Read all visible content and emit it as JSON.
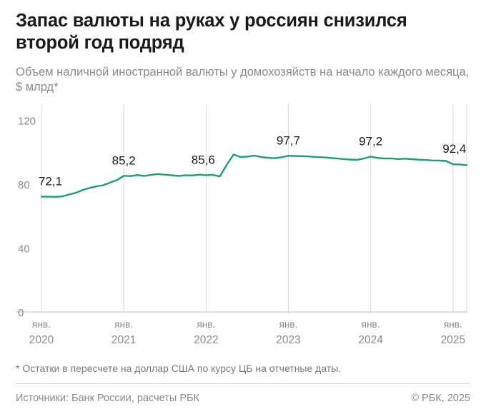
{
  "header": {
    "title": "Запас валюты на руках у россиян снизился второй год подряд",
    "subtitle": "Объем наличной иностранной валюты у домохозяйств на начало каждого месяца, $ млрд*"
  },
  "chart_data": {
    "type": "line",
    "title": "Запас валюты на руках у россиян снизился второй год подряд",
    "subtitle": "Объем наличной иностранной валюты у домохозяйств на начало каждого месяца, $ млрд*",
    "xlabel": "",
    "ylabel": "",
    "ylim": [
      0,
      130
    ],
    "y_ticks": [
      0,
      40,
      80,
      120
    ],
    "x_ticks": [
      {
        "label": [
          "янв.",
          "2020"
        ],
        "month_index": 0
      },
      {
        "label": [
          "янв.",
          "2021"
        ],
        "month_index": 12
      },
      {
        "label": [
          "янв.",
          "2022"
        ],
        "month_index": 24
      },
      {
        "label": [
          "янв.",
          "2023"
        ],
        "month_index": 36
      },
      {
        "label": [
          "янв.",
          "2024"
        ],
        "month_index": 48
      },
      {
        "label": [
          "янв.",
          "2025"
        ],
        "month_index": 60
      }
    ],
    "grid": "vertical lines at January of each year",
    "line_color": "#1f9e6e",
    "series": [
      {
        "values": [
          72.1,
          72.2,
          72.0,
          72.3,
          73.5,
          74.5,
          76.3,
          77.6,
          78.6,
          79.3,
          81.0,
          82.5,
          85.2,
          85.0,
          85.7,
          85.1,
          85.8,
          86.3,
          85.9,
          85.5,
          85.1,
          85.5,
          85.4,
          85.9,
          85.6,
          85.8,
          84.8,
          92.0,
          98.5,
          97.0,
          97.2,
          97.9,
          97.0,
          96.5,
          96.2,
          96.8,
          97.7,
          97.6,
          97.5,
          97.3,
          97.0,
          96.8,
          96.4,
          96.1,
          95.7,
          95.4,
          95.2,
          96.0,
          97.2,
          96.4,
          96.0,
          96.1,
          95.7,
          95.9,
          95.6,
          95.3,
          95.1,
          94.8,
          94.7,
          94.5,
          92.4,
          92.3,
          91.9
        ]
      }
    ],
    "annotations": [
      {
        "month_index": 0,
        "label": "72,1"
      },
      {
        "month_index": 12,
        "label": "85,2"
      },
      {
        "month_index": 24,
        "label": "85,6"
      },
      {
        "month_index": 36,
        "label": "97,7"
      },
      {
        "month_index": 48,
        "label": "97,2"
      },
      {
        "month_index": 60,
        "label": "92,4"
      }
    ]
  },
  "footer": {
    "footnote": "* Остатки в пересчете на доллар США по курсу ЦБ на отчетные даты.",
    "sources": "Источники: Банк России, расчеты РБК",
    "copyright": "© РБК, 2025"
  }
}
